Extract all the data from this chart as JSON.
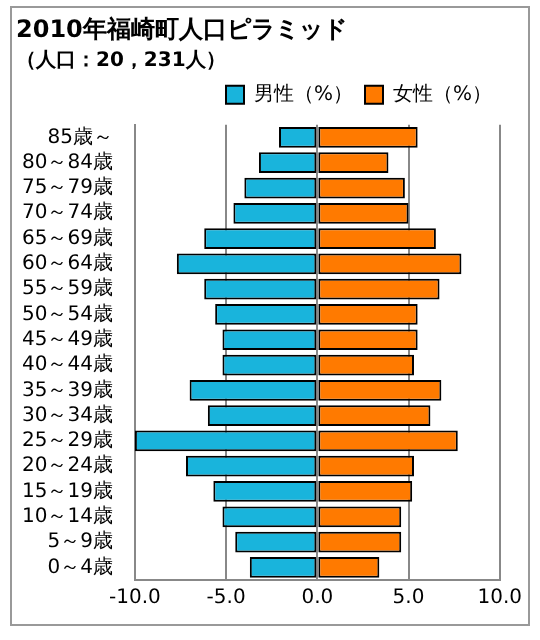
{
  "chart_data": {
    "type": "bar",
    "orientation": "horizontal",
    "stacked": true,
    "title": "2010年福崎町人口ピラミッド",
    "subtitle": "（人口：20，231人）",
    "categories": [
      "85歳～",
      "80～84歳",
      "75～79歳",
      "70～74歳",
      "65～69歳",
      "60～64歳",
      "55～59歳",
      "50～54歳",
      "45～49歳",
      "40～44歳",
      "35～39歳",
      "30～34歳",
      "25～29歳",
      "20～24歳",
      "15～19歳",
      "10～14歳",
      "5～9歳",
      "0～4歳"
    ],
    "series": [
      {
        "name": "男性（%）",
        "color": "#19b4dc",
        "values": [
          -2.1,
          -3.2,
          -4.0,
          -4.6,
          -6.2,
          -7.7,
          -6.2,
          -5.6,
          -5.2,
          -5.2,
          -7.0,
          -6.0,
          -10.0,
          -7.2,
          -5.7,
          -5.2,
          -4.5,
          -3.7
        ]
      },
      {
        "name": "女性（%）",
        "color": "#ff7a00",
        "values": [
          5.5,
          3.9,
          4.8,
          5.0,
          6.5,
          7.9,
          6.7,
          5.5,
          5.5,
          5.3,
          6.8,
          6.2,
          7.7,
          5.3,
          5.2,
          4.6,
          4.6,
          3.4
        ]
      }
    ],
    "xlim": [
      -10,
      10
    ],
    "xticks": [
      {
        "value": -10,
        "label": "-10.0"
      },
      {
        "value": -5,
        "label": "-5.0"
      },
      {
        "value": 0,
        "label": "0.0"
      },
      {
        "value": 5,
        "label": "5.0"
      },
      {
        "value": 10,
        "label": "10.0"
      }
    ],
    "grid": "x",
    "legend": "top right"
  }
}
